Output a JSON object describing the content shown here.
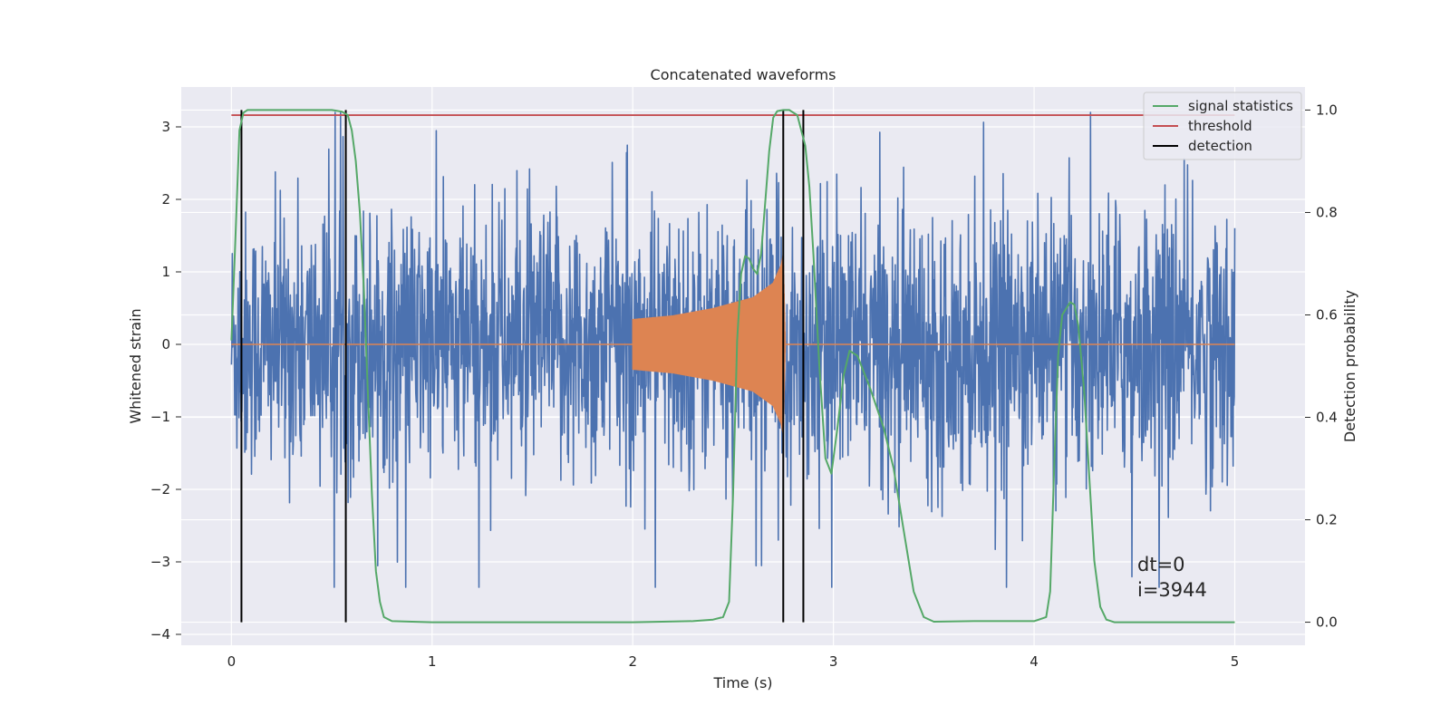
{
  "chart_data": {
    "type": "line",
    "title": "Concatenated waveforms",
    "xlabel": "Time (s)",
    "ylabel": "Whitened strain",
    "y2label": "Detection probability",
    "xlim": [
      -0.25,
      5.35
    ],
    "ylim": [
      -4.15,
      3.55
    ],
    "y2lim": [
      -0.045,
      1.045
    ],
    "xticks": [
      0,
      1,
      2,
      3,
      4,
      5
    ],
    "yticks": [
      -4,
      -3,
      -2,
      -1,
      0,
      1,
      2,
      3
    ],
    "y2ticks": [
      0.0,
      0.2,
      0.4,
      0.6,
      0.8,
      1.0
    ],
    "grid": true,
    "legend_position": "top-right",
    "colors": {
      "background": "#eaeaf2",
      "grid": "#ffffff",
      "strain": "#4c72b0",
      "injection": "#dd8452",
      "signal_statistics": "#55a868",
      "threshold": "#c44e52",
      "detection": "#000000"
    },
    "legend": [
      "signal statistics",
      "threshold",
      "detection"
    ],
    "series": [
      {
        "name": "signal statistics",
        "axis": "right",
        "x": [
          0,
          0.02,
          0.04,
          0.06,
          0.08,
          0.1,
          0.15,
          0.5,
          0.55,
          0.58,
          0.6,
          0.62,
          0.64,
          0.66,
          0.68,
          0.7,
          0.72,
          0.74,
          0.76,
          0.8,
          1.0,
          2.0,
          2.3,
          2.4,
          2.45,
          2.48,
          2.5,
          2.52,
          2.54,
          2.56,
          2.58,
          2.6,
          2.62,
          2.64,
          2.66,
          2.68,
          2.7,
          2.72,
          2.75,
          2.78,
          2.82,
          2.86,
          2.88,
          2.9,
          2.93,
          2.96,
          2.99,
          3.02,
          3.05,
          3.08,
          3.12,
          3.18,
          3.25,
          3.3,
          3.35,
          3.4,
          3.45,
          3.5,
          3.7,
          4.0,
          4.06,
          4.08,
          4.1,
          4.12,
          4.14,
          4.18,
          4.2,
          4.22,
          4.25,
          4.28,
          4.3,
          4.33,
          4.36,
          4.4,
          5.0
        ],
        "values": [
          0.55,
          0.75,
          0.96,
          0.995,
          1.0,
          1.0,
          1.0,
          1.0,
          0.997,
          0.99,
          0.96,
          0.9,
          0.8,
          0.65,
          0.45,
          0.25,
          0.1,
          0.04,
          0.01,
          0.002,
          0.0,
          0.0,
          0.002,
          0.005,
          0.01,
          0.04,
          0.25,
          0.55,
          0.68,
          0.715,
          0.71,
          0.69,
          0.68,
          0.72,
          0.82,
          0.92,
          0.985,
          0.998,
          1.0,
          1.0,
          0.99,
          0.93,
          0.85,
          0.72,
          0.5,
          0.32,
          0.29,
          0.38,
          0.48,
          0.53,
          0.52,
          0.46,
          0.38,
          0.3,
          0.18,
          0.06,
          0.01,
          0.001,
          0.002,
          0.002,
          0.01,
          0.06,
          0.3,
          0.52,
          0.6,
          0.625,
          0.62,
          0.58,
          0.45,
          0.25,
          0.12,
          0.03,
          0.005,
          0.0,
          0.0
        ]
      },
      {
        "name": "threshold",
        "axis": "right",
        "x": [
          0,
          5.0
        ],
        "values": [
          0.99,
          0.99
        ]
      },
      {
        "name": "detection",
        "axis": "right",
        "x": [
          0.05,
          0.57,
          2.75,
          2.85
        ],
        "y_range": [
          0.0,
          1.0
        ]
      },
      {
        "name": "",
        "axis": "left",
        "description_key": "strain",
        "x_range": [
          0,
          5.0
        ],
        "amplitude_range": [
          -3.35,
          3.2
        ]
      },
      {
        "name": "",
        "axis": "left",
        "description_key": "injection",
        "x": [
          2.0,
          2.2,
          2.4,
          2.6,
          2.7,
          2.74,
          2.75,
          2.76
        ],
        "envelope": [
          0.35,
          0.4,
          0.5,
          0.65,
          0.85,
          1.1,
          1.25,
          0.05
        ]
      }
    ],
    "annotations": [
      "dt=0",
      "i=3944"
    ]
  }
}
